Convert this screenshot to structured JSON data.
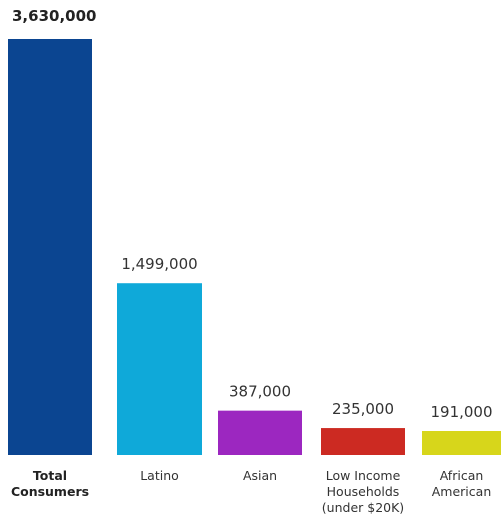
{
  "chart_data": {
    "type": "bar",
    "title": "",
    "xlabel": "",
    "ylabel": "",
    "categories": [
      [
        "Total",
        "Consumers"
      ],
      [
        "Latino"
      ],
      [
        "Asian"
      ],
      [
        "Low Income",
        "Households",
        "(under $20K)"
      ],
      [
        "African",
        "American"
      ]
    ],
    "values": [
      3630000,
      1499000,
      387000,
      235000,
      191000
    ],
    "value_labels": [
      "3,630,000",
      "1,499,000",
      "387,000",
      "235,000",
      "191,000"
    ],
    "colors": [
      "#0b4591",
      "#0fa9d9",
      "#9c27c0",
      "#cc2a22",
      "#d7d61b"
    ],
    "bold_first": true,
    "grid": false,
    "legend": "none"
  }
}
